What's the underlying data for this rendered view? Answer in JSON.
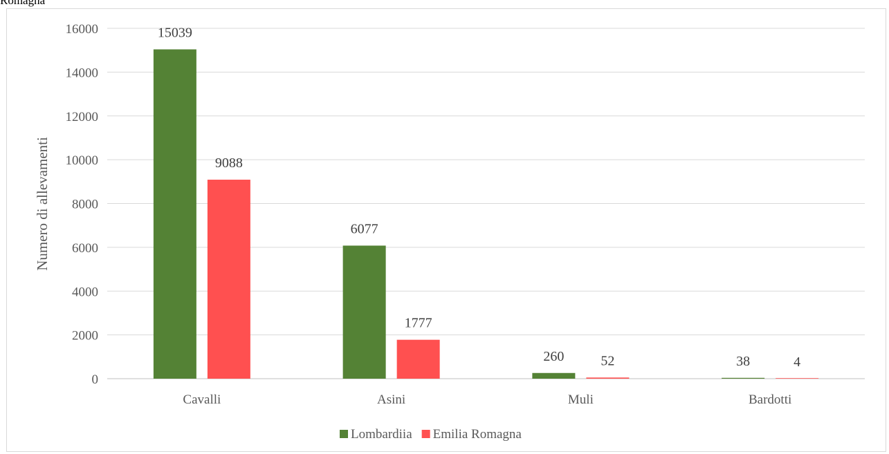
{
  "caption_fragment": "Romagna",
  "chart_data": {
    "type": "bar",
    "title": "",
    "xlabel": "",
    "ylabel": "Numero di allevamenti",
    "ylim": [
      0,
      16000
    ],
    "yticks": [
      0,
      2000,
      4000,
      6000,
      8000,
      10000,
      12000,
      14000,
      16000
    ],
    "categories": [
      "Cavalli",
      "Asini",
      "Muli",
      "Bardotti"
    ],
    "series": [
      {
        "name": "Lombardiia",
        "color": "#548235",
        "values": [
          15039,
          6077,
          260,
          38
        ]
      },
      {
        "name": "Emilia Romagna",
        "color": "#ff5050",
        "values": [
          9088,
          1777,
          52,
          4
        ]
      }
    ],
    "grid": true,
    "legend": "bottom-center",
    "data_labels": true
  }
}
